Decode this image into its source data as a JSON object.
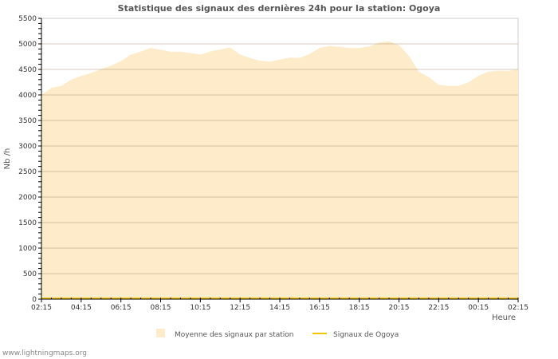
{
  "chart_data": {
    "type": "area",
    "title": "Statistique des signaux des dernières 24h pour la station: Ogoya",
    "xlabel": "Heure",
    "ylabel": "Nb /h",
    "ylim": [
      0,
      5500
    ],
    "yticks": [
      0,
      500,
      1000,
      1500,
      2000,
      2500,
      3000,
      3500,
      4000,
      4500,
      5000,
      5500
    ],
    "xtick_labels": [
      "02:15",
      "04:15",
      "06:15",
      "08:15",
      "10:15",
      "12:15",
      "14:15",
      "16:15",
      "18:15",
      "20:15",
      "22:15",
      "00:15",
      "02:15"
    ],
    "x_interval_hours": 0.5,
    "grid": true,
    "legend_position": "bottom",
    "series": [
      {
        "name": "Moyenne des signaux par station",
        "kind": "area",
        "color": "#fdebc9",
        "values": [
          4000,
          4140,
          4175,
          4300,
          4370,
          4430,
          4505,
          4575,
          4660,
          4790,
          4850,
          4920,
          4885,
          4845,
          4845,
          4820,
          4790,
          4850,
          4890,
          4930,
          4790,
          4725,
          4670,
          4650,
          4690,
          4730,
          4725,
          4800,
          4920,
          4960,
          4940,
          4920,
          4920,
          4950,
          5025,
          5050,
          4975,
          4765,
          4455,
          4350,
          4200,
          4175,
          4180,
          4245,
          4375,
          4455,
          4475,
          4470,
          4500
        ]
      },
      {
        "name": "Signaux de Ogoya",
        "kind": "line",
        "color": "#f5c400",
        "values": [
          0,
          0,
          0,
          0,
          0,
          0,
          0,
          0,
          0,
          0,
          0,
          0,
          0,
          0,
          0,
          0,
          0,
          0,
          0,
          0,
          0,
          0,
          0,
          0,
          0,
          0,
          0,
          0,
          0,
          0,
          0,
          0,
          0,
          0,
          0,
          0,
          0,
          0,
          0,
          0,
          0,
          0,
          0,
          0,
          0,
          0,
          0,
          0,
          0
        ]
      }
    ]
  },
  "footer": "www.lightningmaps.org"
}
